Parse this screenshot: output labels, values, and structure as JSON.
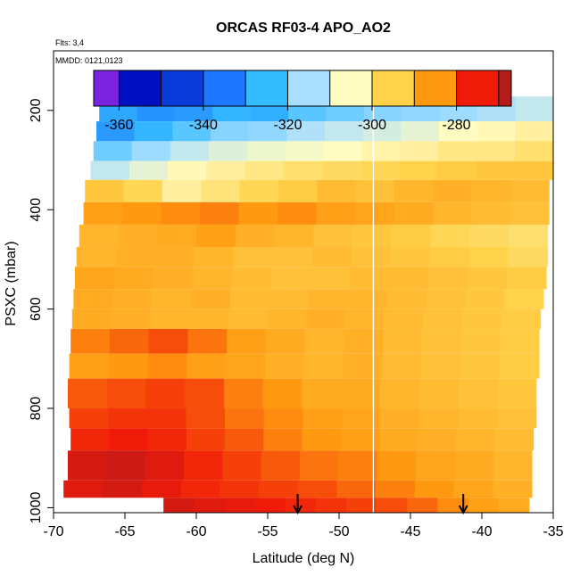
{
  "chart_data": {
    "type": "heatmap",
    "title": "ORCAS RF03-4 APO_AO2",
    "annotations": [
      "Flts: 3,4",
      "MMDD: 0121,0123"
    ],
    "xlabel": "Latitude (deg N)",
    "ylabel": "PSXC (mbar)",
    "xlim": [
      -70,
      -35
    ],
    "ylim": [
      1010,
      80
    ],
    "x_ticks": [
      -70,
      -65,
      -60,
      -55,
      -50,
      -45,
      -40,
      -35
    ],
    "y_ticks": [
      200,
      400,
      600,
      800,
      1000
    ],
    "colorbar": {
      "range": [
        -366,
        -267
      ],
      "ticks": [
        -360,
        -340,
        -320,
        -300,
        -280
      ],
      "bins": [
        {
          "lo": -366,
          "hi": -360,
          "color": "#7a24e0"
        },
        {
          "lo": -360,
          "hi": -350,
          "color": "#0010c0"
        },
        {
          "lo": -350,
          "hi": -340,
          "color": "#0a3ad8"
        },
        {
          "lo": -340,
          "hi": -330,
          "color": "#1e78ff"
        },
        {
          "lo": -330,
          "hi": -320,
          "color": "#35bcff"
        },
        {
          "lo": -320,
          "hi": -310,
          "color": "#a8deff"
        },
        {
          "lo": -310,
          "hi": -300,
          "color": "#fffcc2"
        },
        {
          "lo": -300,
          "hi": -290,
          "color": "#ffd24a"
        },
        {
          "lo": -290,
          "hi": -280,
          "color": "#ff9a10"
        },
        {
          "lo": -280,
          "hi": -270,
          "color": "#f01a08"
        },
        {
          "lo": -270,
          "hi": -267,
          "color": "#b41c1c"
        }
      ]
    },
    "flight_gap_latitude": -47.6,
    "arrows_latitude": [
      -52.9,
      -41.3
    ],
    "layers": [
      {
        "p_top": 172,
        "p_bot": 222,
        "lat_start": -66.8,
        "lat_end": -35,
        "values": [
          -328,
          -331,
          -330,
          -326,
          -327,
          -322,
          -320,
          -318,
          -317,
          -316,
          -314,
          -312
        ]
      },
      {
        "p_top": 222,
        "p_bot": 262,
        "lat_start": -67.0,
        "lat_end": -35,
        "values": [
          -330,
          -326,
          -322,
          -318,
          -317,
          -314,
          -312,
          -310,
          -308,
          -305,
          -304,
          -302
        ]
      },
      {
        "p_top": 262,
        "p_bot": 302,
        "lat_start": -67.2,
        "lat_end": -35,
        "values": [
          -320,
          -316,
          -312,
          -309,
          -307,
          -306,
          -305,
          -303,
          -302,
          -300,
          -300,
          -298
        ]
      },
      {
        "p_top": 302,
        "p_bot": 340,
        "lat_start": -67.4,
        "lat_end": -35,
        "values": [
          -312,
          -308,
          -304,
          -302,
          -300,
          -298,
          -297,
          -296,
          -295,
          -294,
          -293,
          -293
        ]
      },
      {
        "p_top": 340,
        "p_bot": 385,
        "lat_start": -67.8,
        "lat_end": -35.3,
        "values": [
          -293,
          -296,
          -302,
          -299,
          -296,
          -294,
          -291,
          -292,
          -290,
          -289,
          -290,
          -291
        ]
      },
      {
        "p_top": 385,
        "p_bot": 430,
        "lat_start": -67.9,
        "lat_end": -35.3,
        "values": [
          -286,
          -285,
          -284,
          -283,
          -285,
          -284,
          -286,
          -287,
          -288,
          -290,
          -291,
          -292
        ]
      },
      {
        "p_top": 430,
        "p_bot": 475,
        "lat_start": -68.2,
        "lat_end": -35.4,
        "values": [
          -290,
          -289,
          -288,
          -286,
          -289,
          -290,
          -292,
          -293,
          -294,
          -296,
          -297,
          -298
        ]
      },
      {
        "p_top": 475,
        "p_bot": 515,
        "lat_start": -68.4,
        "lat_end": -35.4,
        "values": [
          -290,
          -289,
          -289,
          -290,
          -292,
          -292,
          -291,
          -292,
          -293,
          -294,
          -295,
          -297
        ]
      },
      {
        "p_top": 515,
        "p_bot": 560,
        "lat_start": -68.5,
        "lat_end": -35.5,
        "values": [
          -287,
          -288,
          -289,
          -290,
          -291,
          -292,
          -292,
          -291,
          -291,
          -292,
          -293,
          -294
        ]
      },
      {
        "p_top": 560,
        "p_bot": 600,
        "lat_start": -68.6,
        "lat_end": -35.7,
        "values": [
          -288,
          -289,
          -290,
          -289,
          -291,
          -291,
          -290,
          -290,
          -291,
          -292,
          -293,
          -295
        ]
      },
      {
        "p_top": 600,
        "p_bot": 640,
        "lat_start": -68.7,
        "lat_end": -35.9,
        "values": [
          -288,
          -289,
          -290,
          -290,
          -291,
          -290,
          -289,
          -290,
          -291,
          -292,
          -293,
          -294
        ]
      },
      {
        "p_top": 640,
        "p_bot": 690,
        "lat_start": -68.8,
        "lat_end": -36.0,
        "values": [
          -283,
          -281,
          -279,
          -282,
          -286,
          -288,
          -290,
          -289,
          -291,
          -292,
          -293,
          -294
        ]
      },
      {
        "p_top": 690,
        "p_bot": 740,
        "lat_start": -68.9,
        "lat_end": -36.0,
        "values": [
          -286,
          -285,
          -284,
          -286,
          -287,
          -289,
          -290,
          -289,
          -291,
          -292,
          -293,
          -294
        ]
      },
      {
        "p_top": 740,
        "p_bot": 800,
        "lat_start": -69.0,
        "lat_end": -36.2,
        "values": [
          -280,
          -279,
          -278,
          -279,
          -283,
          -285,
          -288,
          -288,
          -290,
          -291,
          -292,
          -293
        ]
      },
      {
        "p_top": 800,
        "p_bot": 840,
        "lat_start": -68.9,
        "lat_end": -36.2,
        "values": [
          -278,
          -277,
          -277,
          -279,
          -282,
          -284,
          -286,
          -287,
          -289,
          -290,
          -291,
          -292
        ]
      },
      {
        "p_top": 840,
        "p_bot": 885,
        "lat_start": -68.8,
        "lat_end": -36.4,
        "values": [
          -276,
          -275,
          -276,
          -278,
          -280,
          -283,
          -285,
          -286,
          -288,
          -289,
          -290,
          -291
        ]
      },
      {
        "p_top": 885,
        "p_bot": 945,
        "lat_start": -69.0,
        "lat_end": -36.5,
        "values": [
          -272,
          -271,
          -273,
          -276,
          -278,
          -280,
          -282,
          -283,
          -285,
          -287,
          -288,
          -290
        ]
      },
      {
        "p_top": 945,
        "p_bot": 980,
        "lat_start": -69.3,
        "lat_end": -36.5,
        "values": [
          -273,
          -272,
          -274,
          -276,
          -277,
          -278,
          -279,
          -281,
          -283,
          -285,
          -287,
          -289
        ]
      },
      {
        "p_top": 980,
        "p_bot": 1010,
        "lat_start": -62.3,
        "lat_end": -36.7,
        "values": [
          -272,
          -273,
          -274,
          -275,
          -276,
          -277,
          -278,
          -279,
          -281,
          -284,
          -286,
          -288
        ]
      }
    ]
  }
}
